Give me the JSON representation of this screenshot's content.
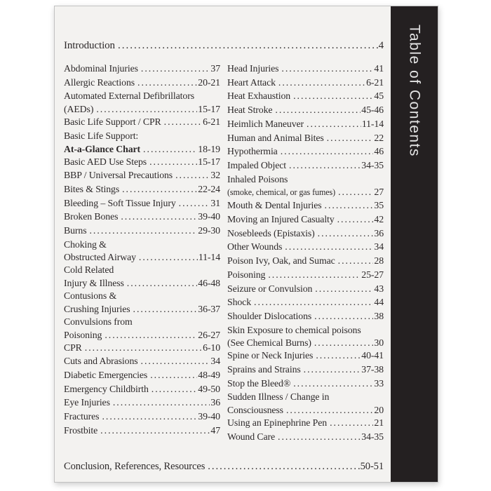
{
  "page": {
    "background": "#f3f2f0",
    "text_color": "#2d292a"
  },
  "sidebar": {
    "title": "Table of Contents",
    "background": "#242021",
    "text_color": "#e3e3e3"
  },
  "intro": {
    "label": "Introduction",
    "page": "4"
  },
  "conclusion": {
    "label": "Conclusion, References, Resources",
    "page": "50-51"
  },
  "toc": {
    "left": [
      {
        "lines": [
          "Abdominal Injuries"
        ],
        "page": "37"
      },
      {
        "lines": [
          "Allergic Reactions"
        ],
        "page": "20-21"
      },
      {
        "lines": [
          "Automated External Defibrillators",
          "(AEDs)"
        ],
        "page": "15-17"
      },
      {
        "lines": [
          "Basic Life Support / CPR"
        ],
        "page": "6-21"
      },
      {
        "lines": [
          "Basic Life Support:",
          "At-a-Glance Chart"
        ],
        "page": "18-19",
        "bold_last": true
      },
      {
        "lines": [
          "Basic AED Use Steps"
        ],
        "page": "15-17"
      },
      {
        "lines": [
          "BBP / Universal Precautions"
        ],
        "page": "32"
      },
      {
        "lines": [
          "Bites & Stings"
        ],
        "page": "22-24"
      },
      {
        "lines": [
          "Bleeding – Soft Tissue Injury"
        ],
        "page": "31"
      },
      {
        "lines": [
          "Broken Bones"
        ],
        "page": "39-40"
      },
      {
        "lines": [
          "Burns"
        ],
        "page": "29-30"
      },
      {
        "lines": [
          "Choking &",
          "Obstructed Airway"
        ],
        "page": "11-14"
      },
      {
        "lines": [
          "Cold Related",
          "Injury & Illness"
        ],
        "page": "46-48"
      },
      {
        "lines": [
          "Contusions &",
          "Crushing Injuries"
        ],
        "page": "36-37"
      },
      {
        "lines": [
          "Convulsions from",
          "Poisoning"
        ],
        "page": "26-27"
      },
      {
        "lines": [
          "CPR"
        ],
        "page": "6-10"
      },
      {
        "lines": [
          "Cuts and Abrasions"
        ],
        "page": "34"
      },
      {
        "lines": [
          "Diabetic Emergencies"
        ],
        "page": "48-49"
      },
      {
        "lines": [
          "Emergency Childbirth"
        ],
        "page": "49-50"
      },
      {
        "lines": [
          "Eye Injuries"
        ],
        "page": "36"
      },
      {
        "lines": [
          "Fractures"
        ],
        "page": "39-40"
      },
      {
        "lines": [
          "Frostbite"
        ],
        "page": "47"
      }
    ],
    "right": [
      {
        "lines": [
          "Head Injuries"
        ],
        "page": "41"
      },
      {
        "lines": [
          "Heart Attack"
        ],
        "page": "6-21"
      },
      {
        "lines": [
          "Heat Exhaustion"
        ],
        "page": "45"
      },
      {
        "lines": [
          "Heat Stroke"
        ],
        "page": "45-46"
      },
      {
        "lines": [
          "Heimlich Maneuver"
        ],
        "page": "11-14"
      },
      {
        "lines": [
          "Human and Animal Bites"
        ],
        "page": "22"
      },
      {
        "lines": [
          "Hypothermia"
        ],
        "page": "46"
      },
      {
        "lines": [
          "Impaled Object"
        ],
        "page": "34-35"
      },
      {
        "lines": [
          "Inhaled Poisons",
          "(smoke, chemical, or gas fumes)"
        ],
        "page": "27",
        "small_last": true
      },
      {
        "lines": [
          "Mouth & Dental Injuries"
        ],
        "page": "35"
      },
      {
        "lines": [
          "Moving an Injured Casualty"
        ],
        "page": "42"
      },
      {
        "lines": [
          "Nosebleeds (Epistaxis)"
        ],
        "page": "36"
      },
      {
        "lines": [
          "Other Wounds"
        ],
        "page": "34"
      },
      {
        "lines": [
          "Poison Ivy, Oak, and Sumac"
        ],
        "page": "28"
      },
      {
        "lines": [
          "Poisoning"
        ],
        "page": "25-27"
      },
      {
        "lines": [
          "Seizure or Convulsion"
        ],
        "page": "43"
      },
      {
        "lines": [
          "Shock"
        ],
        "page": "44"
      },
      {
        "lines": [
          "Shoulder Dislocations"
        ],
        "page": "38"
      },
      {
        "lines": [
          "Skin Exposure to chemical poisons",
          "(See Chemical Burns)"
        ],
        "page": "30"
      },
      {
        "lines": [
          "Spine or Neck Injuries"
        ],
        "page": "40-41"
      },
      {
        "lines": [
          "Sprains and Strains"
        ],
        "page": "37-38"
      },
      {
        "lines": [
          "Stop the Bleed®"
        ],
        "page": "33"
      },
      {
        "lines": [
          "Sudden Illness / Change in",
          "Consciousness"
        ],
        "page": "20"
      },
      {
        "lines": [
          "Using an Epinephrine Pen"
        ],
        "page": "21"
      },
      {
        "lines": [
          "Wound Care"
        ],
        "page": "34-35"
      }
    ]
  }
}
